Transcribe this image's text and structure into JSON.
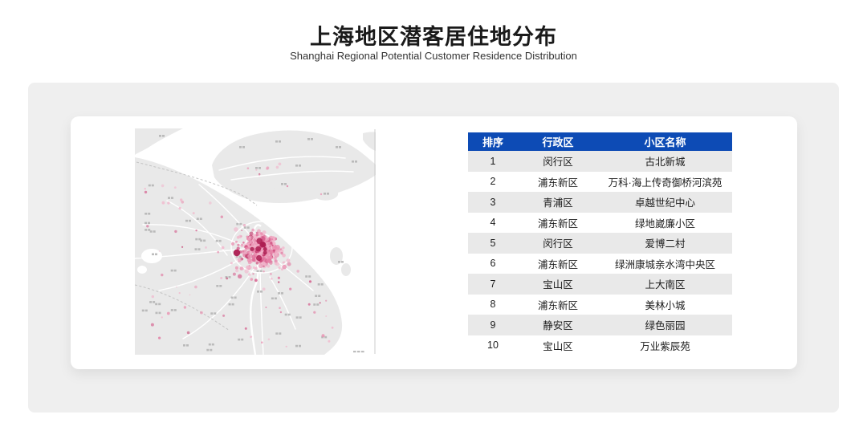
{
  "page": {
    "title_zh": "上海地区潜客居住地分布",
    "title_en": "Shanghai Regional Potential Customer Residence Distribution",
    "background": "#ffffff",
    "panel_bg": "#efefef",
    "card_bg": "#ffffff"
  },
  "table": {
    "headers": [
      "排序",
      "行政区",
      "小区名称"
    ],
    "rows": [
      [
        "1",
        "闵行区",
        "古北新城"
      ],
      [
        "2",
        "浦东新区",
        "万科·海上传奇御桥河滨苑"
      ],
      [
        "3",
        "青浦区",
        "卓越世纪中心"
      ],
      [
        "4",
        "浦东新区",
        "绿地崴廉小区"
      ],
      [
        "5",
        "闵行区",
        "爱博二村"
      ],
      [
        "6",
        "浦东新区",
        "绿洲康城亲水湾中央区"
      ],
      [
        "7",
        "宝山区",
        "上大南区"
      ],
      [
        "8",
        "浦东新区",
        "美林小城"
      ],
      [
        "9",
        "静安区",
        "绿色丽园"
      ],
      [
        "10",
        "宝山区",
        "万业紫辰苑"
      ]
    ],
    "header_bg": "#0d4bb5",
    "row_alt_bg": "#e9e9e9",
    "row_bg": "#ffffff"
  },
  "map": {
    "label": "shanghai-potential-customer-density-map",
    "land_color": "#e9e9e9",
    "water_color": "#ffffff",
    "road_color": "#ffffff",
    "border_color": "#cccccc",
    "map_label_color": "#b2b2b2",
    "dot_colors": [
      "#f2b3ca",
      "#ea8fb0",
      "#e0719b",
      "#d35184",
      "#c23468"
    ],
    "dark_dot_color": "#ad1e52"
  }
}
